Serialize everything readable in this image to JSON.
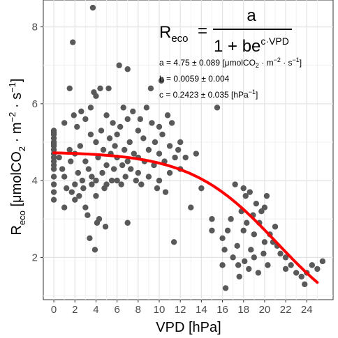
{
  "chart_data": {
    "type": "scatter",
    "xlabel": "VPD [hPa]",
    "ylabel": {
      "main": "R",
      "sub": "eco",
      "units_pre": " [μmolCO",
      "units_sub": "2",
      "units_mid": " · m",
      "units_sup": "−2",
      "units_post": " · s",
      "units_sup2": "−1",
      "units_end": "]"
    },
    "xlim": [
      -1,
      26.5
    ],
    "ylim": [
      0.9,
      8.7
    ],
    "xticks": [
      0,
      2,
      4,
      6,
      8,
      10,
      12,
      14,
      16,
      18,
      20,
      22,
      24
    ],
    "yticks": [
      2,
      4,
      6,
      8
    ],
    "grid": true,
    "points": {
      "color": "#595959",
      "data": [
        [
          0,
          5.3
        ],
        [
          0,
          5.2
        ],
        [
          0,
          5.1
        ],
        [
          0,
          5.0
        ],
        [
          0,
          4.9
        ],
        [
          0,
          4.8
        ],
        [
          0,
          4.7
        ],
        [
          0,
          4.6
        ],
        [
          0,
          4.5
        ],
        [
          0,
          4.3
        ],
        [
          0,
          4.1
        ],
        [
          0,
          3.9
        ],
        [
          0,
          3.7
        ],
        [
          0,
          3.5
        ],
        [
          0,
          5.25
        ],
        [
          0,
          4.95
        ],
        [
          0,
          4.4
        ],
        [
          0.5,
          4.6
        ],
        [
          0.8,
          4.3
        ],
        [
          1,
          5.5
        ],
        [
          1,
          4.1
        ],
        [
          1,
          3.3
        ],
        [
          1.2,
          3.8
        ],
        [
          1.5,
          6.4
        ],
        [
          1.5,
          4.8
        ],
        [
          1.6,
          4.5
        ],
        [
          1.7,
          3.7
        ],
        [
          1.8,
          7.6
        ],
        [
          1.9,
          5.7
        ],
        [
          2,
          4.7
        ],
        [
          2,
          3.9
        ],
        [
          2,
          3.5
        ],
        [
          2.2,
          5.4
        ],
        [
          2.3,
          4.2
        ],
        [
          2.4,
          3.6
        ],
        [
          2.5,
          4.9
        ],
        [
          2.6,
          5.8
        ],
        [
          2.7,
          4.0
        ],
        [
          2.8,
          3.8
        ],
        [
          3,
          5.6
        ],
        [
          3,
          4.5
        ],
        [
          3,
          3.3
        ],
        [
          3.2,
          3.1
        ],
        [
          3.3,
          4.3
        ],
        [
          3.4,
          2.5
        ],
        [
          3.5,
          5.9
        ],
        [
          3.5,
          5.2
        ],
        [
          3.6,
          4.1
        ],
        [
          3.6,
          3.9
        ],
        [
          3.7,
          8.5
        ],
        [
          3.8,
          6.3
        ],
        [
          3.9,
          2.2
        ],
        [
          4,
          6.2
        ],
        [
          4,
          5.0
        ],
        [
          4,
          4.0
        ],
        [
          4,
          3.6
        ],
        [
          4.1,
          2.9
        ],
        [
          4.2,
          4.6
        ],
        [
          4.3,
          3.0
        ],
        [
          4.4,
          6.4
        ],
        [
          4.5,
          5.3
        ],
        [
          4.6,
          4.2
        ],
        [
          4.7,
          4.8
        ],
        [
          4.8,
          3.8
        ],
        [
          4.9,
          2.8
        ],
        [
          5,
          5.7
        ],
        [
          5,
          4.4
        ],
        [
          5,
          3.9
        ],
        [
          5.2,
          6.4
        ],
        [
          5.3,
          5.1
        ],
        [
          5.4,
          4.7
        ],
        [
          5.5,
          4.0
        ],
        [
          5.6,
          5.5
        ],
        [
          5.7,
          4.3
        ],
        [
          5.8,
          4.9
        ],
        [
          6,
          5.2
        ],
        [
          6,
          4.6
        ],
        [
          6,
          4.0
        ],
        [
          6.2,
          7.0
        ],
        [
          6.3,
          5.4
        ],
        [
          6.4,
          3.9
        ],
        [
          6.5,
          4.4
        ],
        [
          6.6,
          5.9
        ],
        [
          6.7,
          4.8
        ],
        [
          6.8,
          4.1
        ],
        [
          7,
          6.9
        ],
        [
          7,
          5.6
        ],
        [
          7,
          4.5
        ],
        [
          7,
          2.9
        ],
        [
          7.2,
          5.0
        ],
        [
          7.3,
          4.3
        ],
        [
          7.5,
          5.8
        ],
        [
          7.6,
          4.7
        ],
        [
          7.8,
          4.0
        ],
        [
          8,
          5.3
        ],
        [
          8,
          4.6
        ],
        [
          8,
          4.2
        ],
        [
          8.2,
          5.6
        ],
        [
          8.3,
          3.9
        ],
        [
          8.5,
          5.1
        ],
        [
          8.6,
          4.5
        ],
        [
          8.8,
          5.9
        ],
        [
          9,
          4.8
        ],
        [
          9,
          4.1
        ],
        [
          9.2,
          6.4
        ],
        [
          9.3,
          5.5
        ],
        [
          9.5,
          4.4
        ],
        [
          9.6,
          5.0
        ],
        [
          9.8,
          3.8
        ],
        [
          10,
          5.4
        ],
        [
          10,
          4.7
        ],
        [
          10,
          4.0
        ],
        [
          10.2,
          6.6
        ],
        [
          10.3,
          5.2
        ],
        [
          10.5,
          4.5
        ],
        [
          10.6,
          3.7
        ],
        [
          10.8,
          5.7
        ],
        [
          11,
          4.9
        ],
        [
          11,
          4.2
        ],
        [
          11.2,
          5.5
        ],
        [
          11.4,
          2.4
        ],
        [
          11.5,
          4.6
        ],
        [
          11.8,
          4.8
        ],
        [
          12,
          5.0
        ],
        [
          12,
          4.3
        ],
        [
          12.5,
          4.6
        ],
        [
          13,
          3.3
        ],
        [
          13.5,
          4.7
        ],
        [
          14,
          3.8
        ],
        [
          15,
          3.0
        ],
        [
          15,
          2.7
        ],
        [
          15.5,
          5.9
        ],
        [
          16,
          2.5
        ],
        [
          16,
          1.8
        ],
        [
          16.2,
          2.2
        ],
        [
          16.3,
          1.2
        ],
        [
          16.5,
          2.7
        ],
        [
          16.8,
          3.0
        ],
        [
          17,
          2.0
        ],
        [
          17.2,
          3.9
        ],
        [
          17.4,
          2.3
        ],
        [
          17.5,
          1.8
        ],
        [
          17.6,
          1.5
        ],
        [
          17.8,
          3.2
        ],
        [
          18,
          3.8
        ],
        [
          18,
          2.7
        ],
        [
          18.1,
          1.9
        ],
        [
          18.2,
          3.6
        ],
        [
          18.3,
          2.9
        ],
        [
          18.5,
          1.7
        ],
        [
          18.6,
          3.7
        ],
        [
          18.7,
          2.2
        ],
        [
          18.9,
          3.1
        ],
        [
          19,
          2.6
        ],
        [
          19,
          2.0
        ],
        [
          19.2,
          3.4
        ],
        [
          19.4,
          1.6
        ],
        [
          19.5,
          2.9
        ],
        [
          19.7,
          3.2
        ],
        [
          19.9,
          2.1
        ],
        [
          20,
          3.3
        ],
        [
          20,
          2.4
        ],
        [
          20.2,
          3.6
        ],
        [
          20.3,
          1.8
        ],
        [
          20.5,
          2.6
        ],
        [
          20.8,
          2.4
        ],
        [
          21,
          2.8
        ],
        [
          21.2,
          2.3
        ],
        [
          21.5,
          2.1
        ],
        [
          22,
          2.0
        ],
        [
          22,
          1.7
        ],
        [
          22.5,
          1.8
        ],
        [
          23,
          1.6
        ],
        [
          23.5,
          1.5
        ],
        [
          23.8,
          1.3
        ],
        [
          24,
          1.6
        ],
        [
          24.5,
          1.8
        ],
        [
          25,
          1.7
        ],
        [
          25.5,
          1.9
        ]
      ]
    },
    "fit": {
      "color": "#ff0000",
      "a": 4.75,
      "b": 0.0059,
      "c": 0.2423,
      "x_range": [
        0,
        25
      ]
    },
    "equation": {
      "lhs_main": "R",
      "lhs_sub": "eco",
      "equals": "=",
      "numerator": "a",
      "denominator_pre": "1 + be",
      "denominator_sup": "c·VPD"
    },
    "params": [
      {
        "lead": "a = 4.75 ± 0.089 [μmolCO",
        "sub": "2",
        "mid": " · m",
        "sup": "−2",
        "mid2": " · s",
        "sup2": "−1",
        "end": "]"
      },
      {
        "lead": "b = 0.0059 ± 0.004"
      },
      {
        "lead": "c = 0.2423 ± 0.035 [hPa",
        "sup": "−1",
        "end": "]"
      }
    ]
  }
}
